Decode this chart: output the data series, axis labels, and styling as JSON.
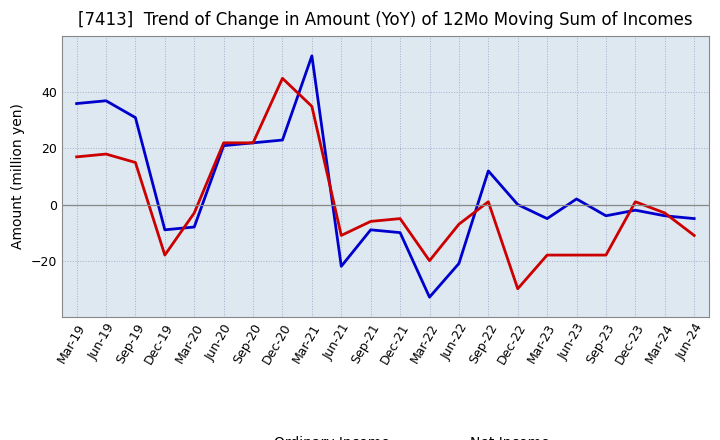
{
  "title": "[7413]  Trend of Change in Amount (YoY) of 12Mo Moving Sum of Incomes",
  "ylabel": "Amount (million yen)",
  "labels": [
    "Mar-19",
    "Jun-19",
    "Sep-19",
    "Dec-19",
    "Mar-20",
    "Jun-20",
    "Sep-20",
    "Dec-20",
    "Mar-21",
    "Jun-21",
    "Sep-21",
    "Dec-21",
    "Mar-22",
    "Jun-22",
    "Sep-22",
    "Dec-22",
    "Mar-23",
    "Jun-23",
    "Sep-23",
    "Dec-23",
    "Mar-24",
    "Jun-24"
  ],
  "ordinary_income": [
    36,
    37,
    31,
    -9,
    -8,
    21,
    22,
    23,
    53,
    -22,
    -9,
    -10,
    -33,
    -21,
    12,
    0,
    -5,
    2,
    -4,
    -2,
    -4,
    -5
  ],
  "net_income": [
    17,
    18,
    15,
    -18,
    -3,
    22,
    22,
    45,
    35,
    -11,
    -6,
    -5,
    -20,
    -7,
    1,
    -30,
    -18,
    -18,
    -18,
    1,
    -3,
    -11
  ],
  "ordinary_color": "#0000cc",
  "net_color": "#cc0000",
  "ylim_min": -40,
  "ylim_max": 60,
  "yticks": [
    -20,
    0,
    20,
    40
  ],
  "plot_bg_color": "#dde8f0",
  "fig_bg_color": "#ffffff",
  "grid_color": "#aaaacc",
  "linewidth": 2.0,
  "title_fontsize": 12,
  "axis_fontsize": 10,
  "tick_fontsize": 9,
  "legend_fontsize": 10
}
